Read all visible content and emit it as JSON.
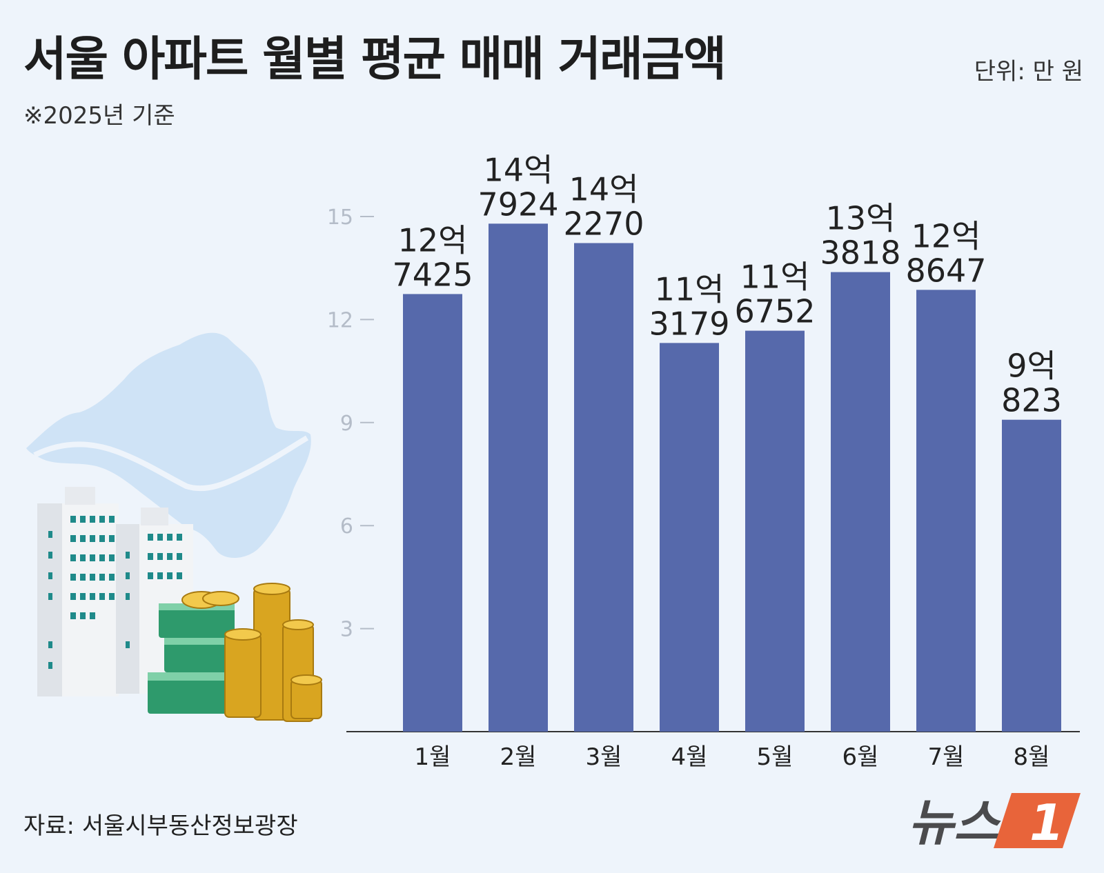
{
  "header": {
    "title": "서울 아파트 월별 평균 매매 거래금액",
    "subtitle": "※2025년 기준",
    "unit": "단위: 만 원"
  },
  "footer": {
    "source": "자료: 서울시부동산정보광장",
    "logo_text": "뉴스",
    "logo_mark": "1"
  },
  "colors": {
    "background": "#eef4fb",
    "bar": "#5669ab",
    "tick": "#b4bcc8",
    "logo_orange": "#e8643a",
    "logo_gray": "#4b4b4d"
  },
  "icons": [
    "seoul-map-icon",
    "apartment-building-icon",
    "money-stack-icon",
    "gold-coin-stack-icon"
  ],
  "chart_data": {
    "type": "bar",
    "title": "서울 아파트 월별 평균 매매 거래금액",
    "subtitle": "※2025년 기준",
    "unit": "단위: 만 원",
    "categories": [
      "1월",
      "2월",
      "3월",
      "4월",
      "5월",
      "6월",
      "7월",
      "8월"
    ],
    "values": [
      127425,
      147924,
      142270,
      113179,
      116752,
      133818,
      128647,
      90823
    ],
    "value_labels": [
      [
        "12억",
        "7425"
      ],
      [
        "14억",
        "7924"
      ],
      [
        "14억",
        "2270"
      ],
      [
        "11억",
        "3179"
      ],
      [
        "11억",
        "6752"
      ],
      [
        "13억",
        "3818"
      ],
      [
        "12억",
        "8647"
      ],
      [
        "9억",
        "823"
      ]
    ],
    "yticks": [
      3,
      6,
      9,
      12,
      15
    ],
    "ytick_unit_scale": 10000,
    "ylim": [
      0,
      16.5
    ],
    "grid": false,
    "legend": "none"
  }
}
